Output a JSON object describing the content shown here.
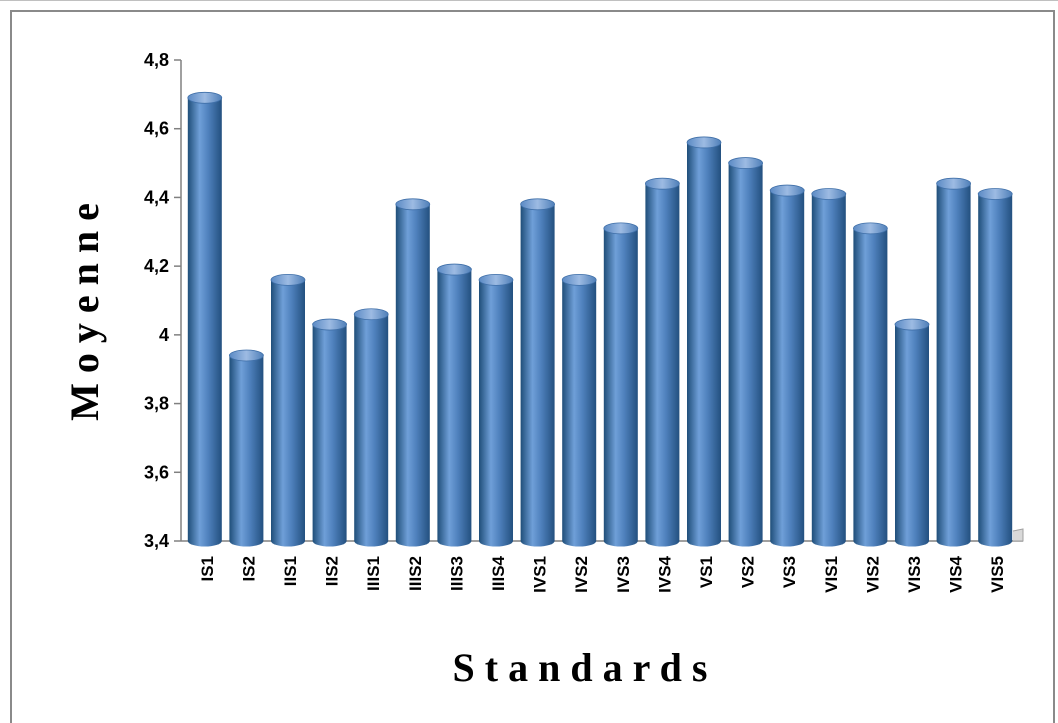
{
  "chart_data": {
    "type": "bar",
    "title": "",
    "xlabel": "S t a n d a r d s",
    "ylabel": "M o y e n n e",
    "ylim": [
      3.4,
      4.8
    ],
    "yticks": [
      "3,4",
      "3,6",
      "3,8",
      "4",
      "4,2",
      "4,4",
      "4,6",
      "4,8"
    ],
    "categories": [
      "IS1",
      "IS2",
      "IIS1",
      "IIS2",
      "IIIS1",
      "IIIS2",
      "IIIS3",
      "IIIS4",
      "IVS1",
      "IVS2",
      "IVS3",
      "IVS4",
      "VS1",
      "VS2",
      "VS3",
      "VIS1",
      "VIS2",
      "VIS3",
      "VIS4",
      "VIS5"
    ],
    "values": [
      4.69,
      3.94,
      4.16,
      4.03,
      4.06,
      4.38,
      4.19,
      4.16,
      4.38,
      4.16,
      4.31,
      4.44,
      4.56,
      4.5,
      4.42,
      4.41,
      4.31,
      4.03,
      4.44,
      4.41
    ],
    "grid": false,
    "legend": "none",
    "colors": {
      "bar_mid": "#4f81bd",
      "bar_dark": "#1f4e79",
      "bar_light": "#95b3d7"
    }
  }
}
